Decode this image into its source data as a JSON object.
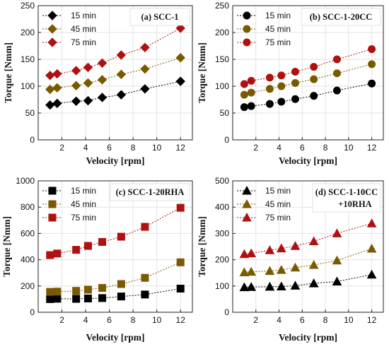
{
  "chart_data": [
    {
      "type": "line",
      "title": "(a) SCC-1",
      "xlabel": "Velocity [rpm]",
      "ylabel": "Torque [Nmm]",
      "xlim": [
        0,
        13
      ],
      "ylim": [
        0,
        250
      ],
      "xticks": [
        2,
        4,
        6,
        8,
        10,
        12
      ],
      "yticks": [
        0,
        50,
        100,
        150,
        200,
        250
      ],
      "x": [
        1,
        1.6,
        3.2,
        4.2,
        5.4,
        7,
        9,
        12
      ],
      "marker": "diamond",
      "grid": true,
      "legend_position": "top-left",
      "series": [
        {
          "name": "15 min",
          "color": "#000000",
          "values": [
            65,
            68,
            72,
            73,
            79,
            84,
            95,
            109
          ]
        },
        {
          "name": "45 min",
          "color": "#7a5a00",
          "values": [
            94,
            97,
            101,
            106,
            112,
            122,
            132,
            153
          ]
        },
        {
          "name": "75 min",
          "color": "#b01010",
          "values": [
            120,
            123,
            129,
            135,
            143,
            158,
            172,
            208
          ]
        }
      ]
    },
    {
      "type": "line",
      "title": "(b) SCC-1-20CC",
      "xlabel": "Velocity [rpm]",
      "ylabel": "Torque [Nmm]",
      "xlim": [
        0,
        13
      ],
      "ylim": [
        0,
        250
      ],
      "xticks": [
        2,
        4,
        6,
        8,
        10,
        12
      ],
      "yticks": [
        0,
        50,
        100,
        150,
        200,
        250
      ],
      "x": [
        1,
        1.6,
        3.2,
        4.2,
        5.4,
        7,
        9,
        12
      ],
      "marker": "circle",
      "grid": true,
      "legend_position": "top-left",
      "series": [
        {
          "name": "15 min",
          "color": "#000000",
          "values": [
            61,
            63,
            67,
            71,
            76,
            82,
            92,
            105
          ]
        },
        {
          "name": "45 min",
          "color": "#7a5a00",
          "values": [
            84,
            88,
            95,
            100,
            106,
            113,
            124,
            141
          ]
        },
        {
          "name": "75 min",
          "color": "#b01010",
          "values": [
            104,
            110,
            116,
            120,
            127,
            136,
            150,
            169
          ]
        }
      ]
    },
    {
      "type": "line",
      "title": "(c) SCC-1-20RHA",
      "xlabel": "Velocity [rpm]",
      "ylabel": "Torque [Nmm]",
      "xlim": [
        0,
        13
      ],
      "ylim": [
        0,
        1000
      ],
      "xticks": [
        2,
        4,
        6,
        8,
        10,
        12
      ],
      "yticks": [
        0,
        200,
        400,
        600,
        800,
        1000
      ],
      "x": [
        1,
        1.6,
        3.2,
        4.2,
        5.4,
        7,
        9,
        12
      ],
      "marker": "square",
      "grid": true,
      "legend_position": "top-left",
      "series": [
        {
          "name": "15 min",
          "color": "#000000",
          "values": [
            100,
            103,
            102,
            105,
            108,
            120,
            135,
            180
          ]
        },
        {
          "name": "45 min",
          "color": "#7a5a00",
          "values": [
            155,
            157,
            163,
            172,
            185,
            215,
            262,
            380
          ]
        },
        {
          "name": "75 min",
          "color": "#b01010",
          "values": [
            435,
            447,
            475,
            505,
            535,
            575,
            650,
            795
          ]
        }
      ]
    },
    {
      "type": "line",
      "title": "(d) SCC-1-10CC +10RHA",
      "xlabel": "Velocity [rpm]",
      "ylabel": "Torque [Nmm]",
      "xlim": [
        0,
        13
      ],
      "ylim": [
        0,
        500
      ],
      "xticks": [
        2,
        4,
        6,
        8,
        10,
        12
      ],
      "yticks": [
        0,
        100,
        200,
        300,
        400,
        500
      ],
      "x": [
        1,
        1.6,
        3.2,
        4.2,
        5.4,
        7,
        9,
        12
      ],
      "marker": "triangle",
      "grid": true,
      "legend_position": "top-left",
      "series": [
        {
          "name": "15 min",
          "color": "#000000",
          "values": [
            95,
            96,
            97,
            98,
            101,
            110,
            117,
            143
          ]
        },
        {
          "name": "45 min",
          "color": "#7a5a00",
          "values": [
            152,
            154,
            157,
            161,
            170,
            180,
            197,
            242
          ]
        },
        {
          "name": "75 min",
          "color": "#b01010",
          "values": [
            221,
            224,
            236,
            243,
            252,
            270,
            300,
            338
          ]
        }
      ]
    }
  ]
}
